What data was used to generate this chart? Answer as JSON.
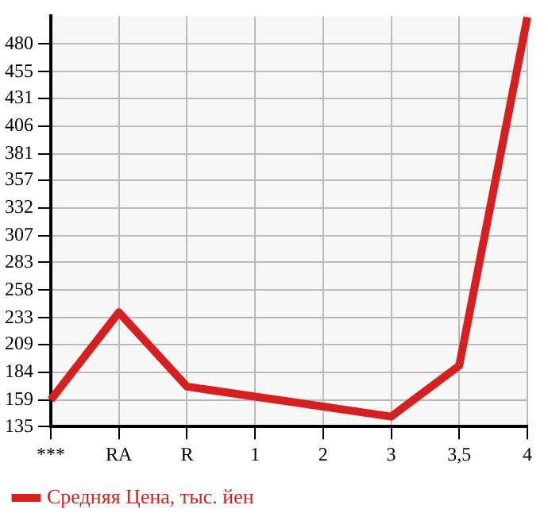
{
  "chart_data": {
    "type": "line",
    "categories": [
      "***",
      "RA",
      "R",
      "1",
      "2",
      "3",
      "3,5",
      "4"
    ],
    "series": [
      {
        "name": "Средняя Цена, тыс. йен",
        "color": "#d42020",
        "values": [
          159,
          238,
          171,
          162,
          153,
          144,
          190,
          504
        ]
      }
    ],
    "ylim": [
      135,
      505
    ],
    "yticks": [
      135,
      159,
      184,
      209,
      233,
      258,
      283,
      307,
      332,
      357,
      381,
      406,
      431,
      455,
      480
    ],
    "grid": true,
    "legend": "bottom",
    "marker": "none",
    "line_style": "solid"
  }
}
